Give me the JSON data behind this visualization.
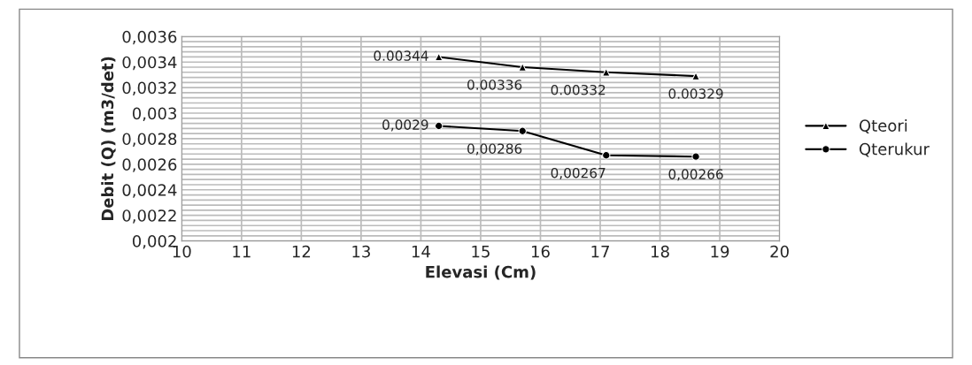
{
  "chart_data": {
    "type": "line",
    "xlabel": "Elevasi (Cm)",
    "ylabel": "Debit (Q) (m3/det)",
    "x": [
      14.3,
      15.7,
      17.1,
      18.6
    ],
    "series": [
      {
        "name": "Qteori",
        "color": "#000000",
        "marker": "triangle",
        "values": [
          0.00344,
          0.00336,
          0.00332,
          0.00329
        ],
        "value_labels": [
          "0.00344",
          "0.00336",
          "0.00332",
          "0.00329"
        ]
      },
      {
        "name": "Qterukur",
        "color": "#000000",
        "marker": "circle",
        "values": [
          0.0029,
          0.00286,
          0.00267,
          0.00266
        ],
        "value_labels": [
          "0,0029",
          "0,00286",
          "0,00267",
          "0,00266"
        ]
      }
    ],
    "xlim": [
      10,
      20
    ],
    "xticks": [
      10,
      11,
      12,
      13,
      14,
      15,
      16,
      17,
      18,
      19,
      20
    ],
    "ylim": [
      0.002,
      0.0036
    ],
    "yticks": [
      {
        "value": 0.002,
        "label": "0,002"
      },
      {
        "value": 0.0022,
        "label": "0,0022"
      },
      {
        "value": 0.0024,
        "label": "0,0024"
      },
      {
        "value": 0.0026,
        "label": "0,0026"
      },
      {
        "value": 0.0028,
        "label": "0,0028"
      },
      {
        "value": 0.003,
        "label": "0,003"
      },
      {
        "value": 0.0032,
        "label": "0,0032"
      },
      {
        "value": 0.0034,
        "label": "0,0034"
      },
      {
        "value": 0.0036,
        "label": "0,0036"
      }
    ],
    "grid": true,
    "legend": "right",
    "line_style": "solid"
  }
}
